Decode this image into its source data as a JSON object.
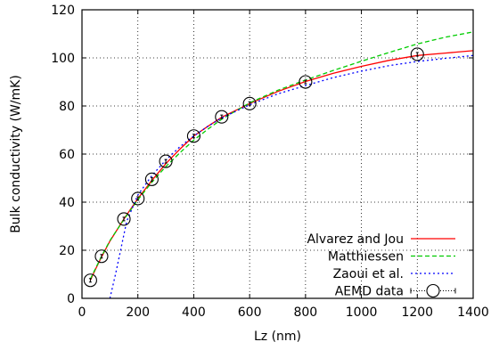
{
  "chart_data": {
    "type": "line",
    "title": "",
    "xlabel": "Lz (nm)",
    "ylabel": "Bulk conductivity (W/mK)",
    "xlim": [
      0,
      1400
    ],
    "ylim": [
      0,
      120
    ],
    "xticks": [
      0,
      200,
      400,
      600,
      800,
      1000,
      1200,
      1400
    ],
    "yticks": [
      0,
      20,
      40,
      60,
      80,
      100,
      120
    ],
    "grid": true,
    "legend_position": "bottom-right",
    "series": [
      {
        "name": "Alvarez and Jou",
        "kind": "line",
        "color": "#ff0000",
        "dash": "solid",
        "x": [
          30,
          50,
          70,
          100,
          150,
          200,
          250,
          300,
          350,
          400,
          450,
          500,
          600,
          700,
          800,
          900,
          1000,
          1100,
          1200,
          1300,
          1400
        ],
        "y": [
          7.5,
          12.5,
          17.2,
          23.8,
          33.0,
          41.5,
          49.0,
          56.0,
          62.0,
          67.5,
          71.5,
          75.3,
          81.0,
          86.0,
          90.2,
          93.6,
          96.5,
          99.0,
          101.0,
          102.0,
          103.0
        ]
      },
      {
        "name": "Matthiessen",
        "kind": "line",
        "color": "#00cc00",
        "dash": "dashed",
        "x": [
          30,
          50,
          70,
          100,
          150,
          200,
          250,
          300,
          350,
          400,
          450,
          500,
          600,
          700,
          800,
          900,
          1000,
          1100,
          1200,
          1300,
          1400
        ],
        "y": [
          8.0,
          12.8,
          17.5,
          24.0,
          32.8,
          41.0,
          48.3,
          54.8,
          60.5,
          65.8,
          70.3,
          74.5,
          81.3,
          86.5,
          90.8,
          94.8,
          98.6,
          102.3,
          105.8,
          108.6,
          110.8
        ]
      },
      {
        "name": "Zaoui et al.",
        "kind": "line",
        "color": "#0000ff",
        "dash": "dotted",
        "x": [
          100,
          120,
          140,
          160,
          200,
          250,
          300,
          350,
          400,
          450,
          500,
          600,
          700,
          800,
          900,
          1000,
          1100,
          1200,
          1300,
          1400
        ],
        "y": [
          0,
          10,
          21,
          32,
          43,
          51,
          57.5,
          63.0,
          67.5,
          71.5,
          75.0,
          80.5,
          85.0,
          88.5,
          91.8,
          94.5,
          96.8,
          98.5,
          99.8,
          101.0
        ]
      },
      {
        "name": "AEMD data",
        "kind": "points",
        "color": "#000000",
        "x": [
          30,
          70,
          150,
          200,
          250,
          300,
          400,
          500,
          600,
          800,
          1200
        ],
        "y": [
          7.5,
          17.5,
          33.0,
          41.5,
          49.5,
          57.0,
          67.5,
          75.5,
          81.0,
          90.0,
          101.5
        ]
      }
    ]
  }
}
